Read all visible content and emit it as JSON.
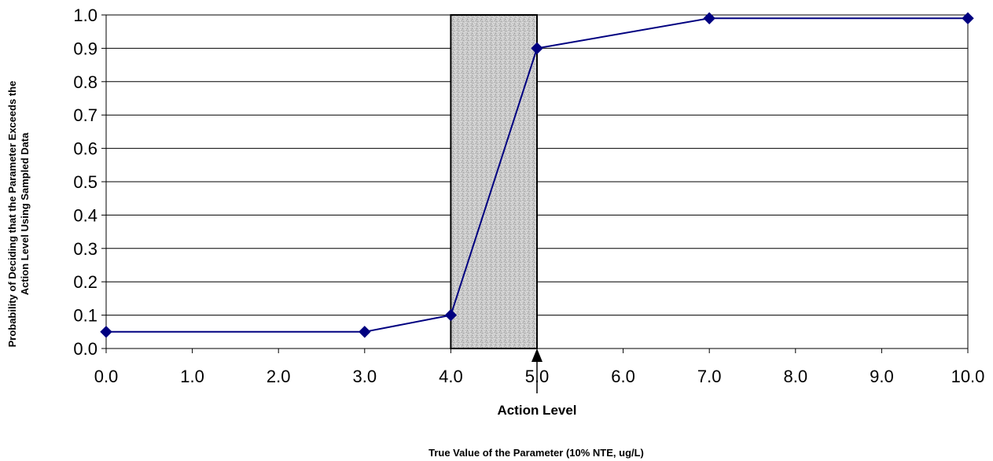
{
  "chart_data": {
    "type": "line",
    "title": "",
    "xlabel": "True Value of the Parameter (10% NTE, ug/L)",
    "ylabel_lines": [
      "Probability of Deciding that the Parameter Exceeds the",
      "Action Level Using Sampled Data"
    ],
    "xlim": [
      0,
      10
    ],
    "ylim": [
      0,
      1
    ],
    "x_ticks": [
      0,
      1,
      2,
      3,
      4,
      5,
      6,
      7,
      8,
      9,
      10
    ],
    "x_tick_labels": [
      "0.0",
      "1.0",
      "2.0",
      "3.0",
      "4.0",
      "5.0",
      "6.0",
      "7.0",
      "8.0",
      "9.0",
      "10.0"
    ],
    "y_ticks": [
      0,
      0.1,
      0.2,
      0.3,
      0.4,
      0.5,
      0.6,
      0.7,
      0.8,
      0.9,
      1.0
    ],
    "y_tick_labels": [
      "0.0",
      "0.1",
      "0.2",
      "0.3",
      "0.4",
      "0.5",
      "0.6",
      "0.7",
      "0.8",
      "0.9",
      "1.0"
    ],
    "grid": "horizontal",
    "series": [
      {
        "x": [
          0,
          3,
          4,
          5,
          7,
          10
        ],
        "y": [
          0.05,
          0.05,
          0.1,
          0.9,
          0.99,
          0.99
        ],
        "color": "#000080"
      }
    ],
    "gray_region": {
      "x_start": 4,
      "x_end": 5,
      "fill": "#c8c8c8"
    },
    "annotations": [
      {
        "text": "Action Level",
        "x": 5
      }
    ]
  }
}
